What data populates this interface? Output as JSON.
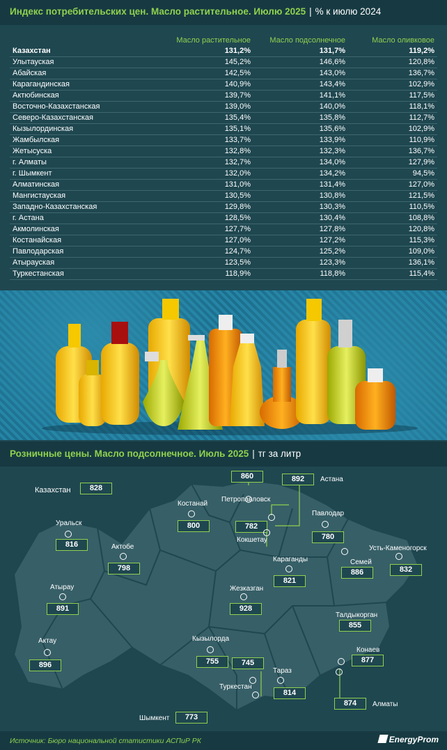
{
  "header": {
    "title": "Индекс потребительских цен. Масло растительное. Июлю 2025",
    "separator": "|",
    "unit": "% к июлю 2024"
  },
  "chart_data": [
    {
      "type": "table",
      "columns": [
        "",
        "Масло растительное",
        "Масло подсолнечное",
        "Масло оливковое"
      ],
      "rows": [
        {
          "region": "Казахстан",
          "v1": "131,2%",
          "v2": "131,7%",
          "v3": "119,2%",
          "bold": true
        },
        {
          "region": "Улытауская",
          "v1": "145,2%",
          "v2": "146,6%",
          "v3": "120,8%"
        },
        {
          "region": "Абайская",
          "v1": "142,5%",
          "v2": "143,0%",
          "v3": "136,7%"
        },
        {
          "region": "Карагандинская",
          "v1": "140,9%",
          "v2": "143,4%",
          "v3": "102,9%"
        },
        {
          "region": "Актюбинская",
          "v1": "139,7%",
          "v2": "141,1%",
          "v3": "117,5%"
        },
        {
          "region": "Восточно-Казахстанская",
          "v1": "139,0%",
          "v2": "140,0%",
          "v3": "118,1%"
        },
        {
          "region": "Северо-Казахстанская",
          "v1": "135,4%",
          "v2": "135,8%",
          "v3": "112,7%"
        },
        {
          "region": "Кызылординская",
          "v1": "135,1%",
          "v2": "135,6%",
          "v3": "102,9%"
        },
        {
          "region": "Жамбылская",
          "v1": "133,7%",
          "v2": "133,9%",
          "v3": "110,9%"
        },
        {
          "region": "Жетысуска",
          "v1": "132,8%",
          "v2": "132,3%",
          "v3": "136,7%"
        },
        {
          "region": "г. Алматы",
          "v1": "132,7%",
          "v2": "134,0%",
          "v3": "127,9%"
        },
        {
          "region": "г. Шымкент",
          "v1": "132,0%",
          "v2": "134,2%",
          "v3": "94,5%"
        },
        {
          "region": "Алматинская",
          "v1": "131,0%",
          "v2": "131,4%",
          "v3": "127,0%"
        },
        {
          "region": "Мангистауская",
          "v1": "130,5%",
          "v2": "130,8%",
          "v3": "121,5%"
        },
        {
          "region": "Западно-Казахстанская",
          "v1": "129,8%",
          "v2": "130,3%",
          "v3": "110,5%"
        },
        {
          "region": "г. Астана",
          "v1": "128,5%",
          "v2": "130,4%",
          "v3": "108,8%"
        },
        {
          "region": "Акмолинская",
          "v1": "127,7%",
          "v2": "127,8%",
          "v3": "120,8%"
        },
        {
          "region": "Костанайская",
          "v1": "127,0%",
          "v2": "127,2%",
          "v3": "115,3%"
        },
        {
          "region": "Павлодарская",
          "v1": "124,7%",
          "v2": "125,2%",
          "v3": "109,0%"
        },
        {
          "region": "Атырауская",
          "v1": "123,5%",
          "v2": "123,3%",
          "v3": "136,1%"
        },
        {
          "region": "Туркестанская",
          "v1": "118,9%",
          "v2": "118,8%",
          "v3": "115,4%"
        }
      ]
    },
    {
      "type": "map",
      "title": "Розничные цены. Масло подсолнечное. Июль 2025",
      "unit": "тг за литр",
      "points": [
        {
          "city": "Казахстан",
          "value": 828
        },
        {
          "city": "Петропавловск",
          "value": 860
        },
        {
          "city": "Астана",
          "value": 892
        },
        {
          "city": "Костанай",
          "value": 800
        },
        {
          "city": "Кокшетау",
          "value": 782
        },
        {
          "city": "Павлодар",
          "value": 780
        },
        {
          "city": "Уральск",
          "value": 816
        },
        {
          "city": "Актобе",
          "value": 798
        },
        {
          "city": "Караганды",
          "value": 821
        },
        {
          "city": "Семей",
          "value": 886
        },
        {
          "city": "Усть-Каменогорск",
          "value": 832
        },
        {
          "city": "Атырау",
          "value": 891
        },
        {
          "city": "Жезказган",
          "value": 928
        },
        {
          "city": "Талдыкорган",
          "value": 855
        },
        {
          "city": "Актау",
          "value": 896
        },
        {
          "city": "Кызылорда",
          "value": 755
        },
        {
          "city": "Конаев",
          "value": 877
        },
        {
          "city": "Тараз",
          "value": 745
        },
        {
          "city": "Туркестан",
          "value": 814
        },
        {
          "city": "Алматы",
          "value": 874
        },
        {
          "city": "Шымкент",
          "value": 773
        }
      ]
    }
  ],
  "footer": {
    "source": "Источник: Бюро национальной статистики АСПиР РК",
    "logo": "EnergyProm"
  }
}
